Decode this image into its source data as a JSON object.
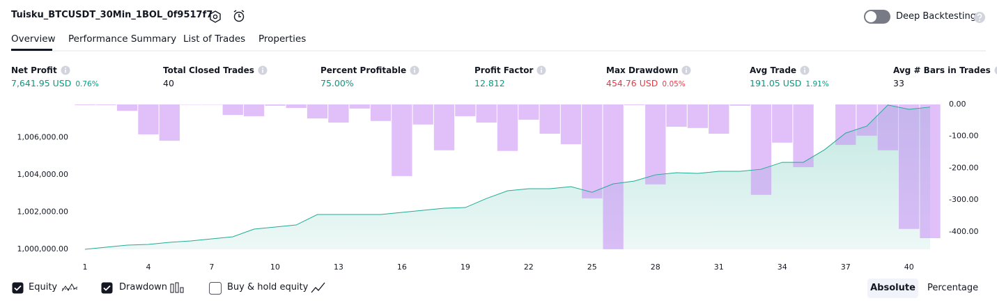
{
  "header": {
    "title": "Tuisku_BTCUSDT_30Min_1BOL_0f9517f7",
    "deep_backtesting": "Deep Backtesting"
  },
  "tabs": [
    "Overview",
    "Performance Summary",
    "List of Trades",
    "Properties"
  ],
  "stats": [
    {
      "label": "Net Profit",
      "value": "7,641.95 USD",
      "percent": "0.76%",
      "color": "#089981"
    },
    {
      "label": "Total Closed Trades",
      "value": "40",
      "color": "#131722"
    },
    {
      "label": "Percent Profitable",
      "value": "75.00%",
      "color": "#089981"
    },
    {
      "label": "Profit Factor",
      "value": "12.812",
      "color": "#089981"
    },
    {
      "label": "Max Drawdown",
      "value": "454.76 USD",
      "percent": "0.05%",
      "color": "#f23645"
    },
    {
      "label": "Avg Trade",
      "value": "191.05 USD",
      "percent": "1.91%",
      "color": "#089981"
    },
    {
      "label": "Avg # Bars in Trades",
      "value": "33",
      "color": "#131722"
    }
  ],
  "chart_data": {
    "type": "combo",
    "x": [
      1,
      2,
      3,
      4,
      5,
      6,
      7,
      8,
      9,
      10,
      11,
      12,
      13,
      14,
      15,
      16,
      17,
      18,
      19,
      20,
      21,
      22,
      23,
      24,
      25,
      26,
      27,
      28,
      29,
      30,
      31,
      32,
      33,
      34,
      35,
      36,
      37,
      38,
      39,
      40,
      41
    ],
    "xlim": [
      0.5,
      41.5
    ],
    "xticks": [
      1,
      4,
      7,
      10,
      13,
      16,
      19,
      22,
      25,
      28,
      31,
      34,
      37,
      40
    ],
    "ylim": [
      1000000,
      1007780
    ],
    "yticks": [
      {
        "value": 1000000,
        "label": "1,000,000.00"
      },
      {
        "value": 1002000,
        "label": "1,002,000.00"
      },
      {
        "value": 1004000,
        "label": "1,004,000.00"
      },
      {
        "value": 1006000,
        "label": "1,006,000.00"
      }
    ],
    "y2lim": [
      -455,
      0
    ],
    "y2ticks": [
      {
        "value": 0,
        "label": "0.00"
      },
      {
        "value": -100,
        "label": "-100.00"
      },
      {
        "value": -200,
        "label": "-200.00"
      },
      {
        "value": -300,
        "label": "-300.00"
      },
      {
        "value": -400,
        "label": "-400.00"
      }
    ],
    "series": [
      {
        "name": "Equity",
        "color": "#22ab94",
        "values": [
          1000000,
          1000112,
          1000224,
          1000262,
          1000374,
          1000449,
          1000561,
          1000673,
          1001084,
          1001196,
          1001308,
          1001869,
          1001869,
          1001869,
          1001869,
          1001981,
          1002093,
          1002206,
          1002243,
          1002729,
          1003140,
          1003252,
          1003252,
          1003364,
          1003065,
          1003514,
          1003664,
          1004000,
          1004112,
          1004075,
          1004187,
          1004187,
          1004299,
          1004673,
          1004673,
          1005346,
          1006243,
          1006617,
          1007750,
          1007520,
          1007641.95
        ]
      },
      {
        "name": "Drawdown",
        "color": "#c98cf5",
        "axis": "y2",
        "values": [
          -2,
          -2,
          -20,
          -94,
          -114,
          -1,
          -1,
          -33,
          -37,
          -4,
          -11,
          -44,
          -57,
          -13,
          -52,
          -225,
          -63,
          -144,
          -37,
          -57,
          -146,
          -48,
          -92,
          -125,
          -295,
          -454.76,
          -2,
          -251,
          -70,
          -74,
          -92,
          -4,
          -284,
          -120,
          -197,
          0,
          -127,
          -98,
          -144,
          -391,
          -420
        ]
      }
    ]
  },
  "controls": {
    "buy_hold": "Buy & hold equity",
    "absolute": "Absolute",
    "percentage": "Percentage"
  }
}
